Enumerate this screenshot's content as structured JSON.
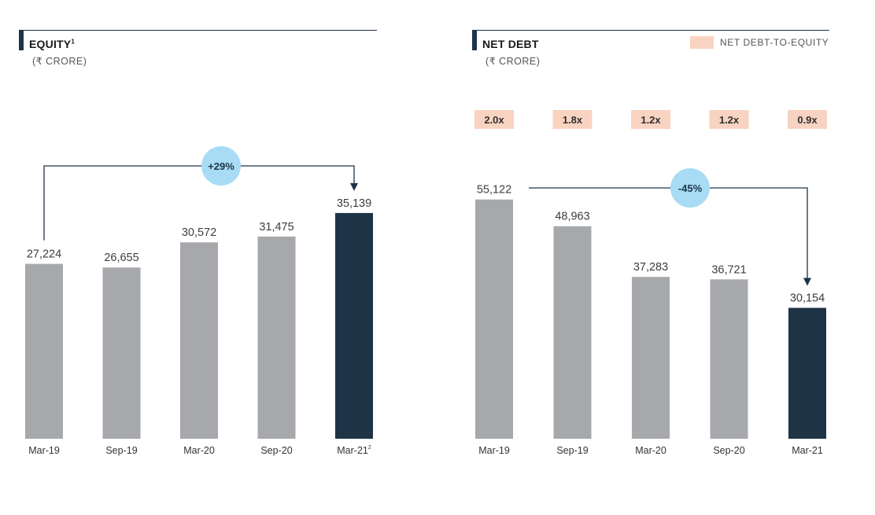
{
  "colors": {
    "bar": "#a7a8ab",
    "bar_highlight": "#1f3347",
    "badge": "#a8dcf5",
    "ratio_box": "#f9d3c1",
    "rule": "#1f3347"
  },
  "equity": {
    "title": "EQUITY",
    "title_sup": "1",
    "subtitle": "(₹ CRORE)"
  },
  "net_debt": {
    "title": "NET DEBT",
    "subtitle": "(₹ CRORE)",
    "legend_label": "NET DEBT-TO-EQUITY"
  },
  "chart_data": [
    {
      "type": "bar",
      "title": "EQUITY¹",
      "subtitle": "(₹ CRORE)",
      "categories": [
        "Mar-19",
        "Sep-19",
        "Mar-20",
        "Sep-20",
        "Mar-21"
      ],
      "category_superscripts": [
        "",
        "",
        "",
        "",
        "2"
      ],
      "values": [
        27224,
        26655,
        30572,
        31475,
        35139
      ],
      "value_labels": [
        "27,224",
        "26,655",
        "30,572",
        "31,475",
        "35,139"
      ],
      "highlight_index": 4,
      "change_annotation": {
        "label": "+29%",
        "from_index": 0,
        "to_index": 4
      },
      "ylim": [
        0,
        40000
      ],
      "grid": false
    },
    {
      "type": "bar",
      "title": "NET DEBT",
      "subtitle": "(₹ CRORE)",
      "categories": [
        "Mar-19",
        "Sep-19",
        "Mar-20",
        "Sep-20",
        "Mar-21"
      ],
      "values": [
        55122,
        48963,
        37283,
        36721,
        30154
      ],
      "value_labels": [
        "55,122",
        "48,963",
        "37,283",
        "36,721",
        "30,154"
      ],
      "highlight_index": 4,
      "change_annotation": {
        "label": "-45%",
        "from_index": 0,
        "to_index": 4
      },
      "secondary_series": {
        "name": "NET DEBT-TO-EQUITY",
        "values": [
          2.0,
          1.8,
          1.2,
          1.2,
          0.9
        ],
        "labels": [
          "2.0x",
          "1.8x",
          "1.2x",
          "1.2x",
          "0.9x"
        ]
      },
      "legend": [
        "NET DEBT-TO-EQUITY"
      ],
      "legend_position": "top-right",
      "ylim": [
        0,
        60000
      ],
      "grid": false
    }
  ]
}
